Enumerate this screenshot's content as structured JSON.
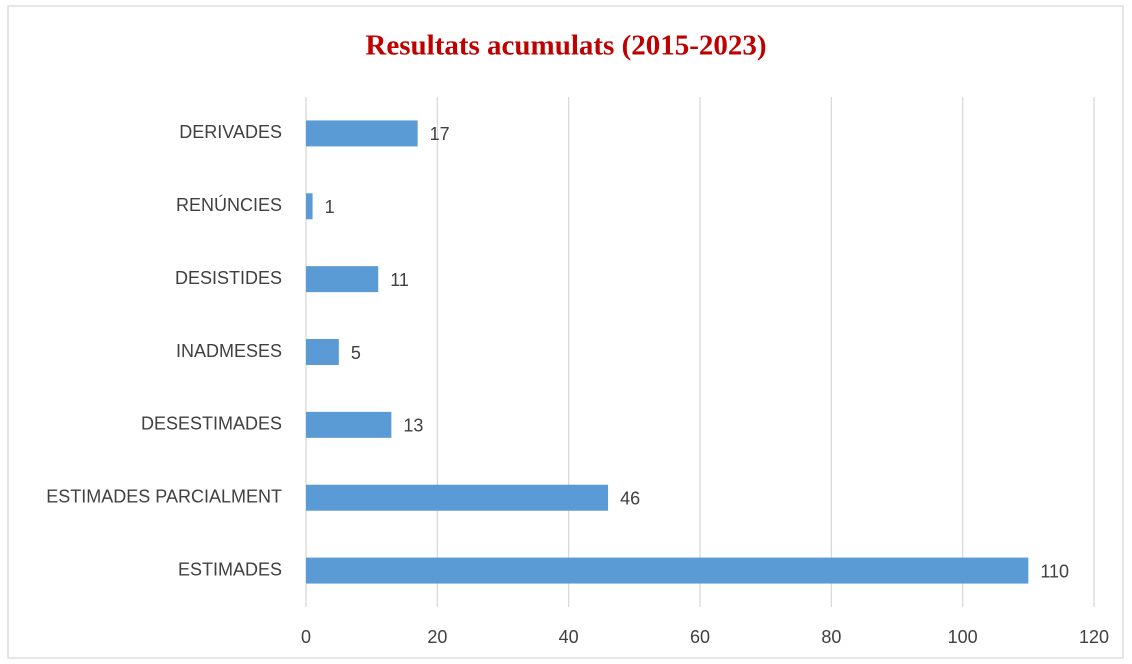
{
  "chart_data": {
    "type": "barh",
    "title": "Resultats acumulats (2015-2023)",
    "categories": [
      "DERIVADES",
      "RENÚNCIES",
      "DESISTIDES",
      "INADMESES",
      "DESESTIMADES",
      "ESTIMADES PARCIALMENT",
      "ESTIMADES"
    ],
    "values": [
      17,
      1,
      11,
      5,
      13,
      46,
      110
    ],
    "color": "#5b9bd5",
    "xlim": [
      0,
      120
    ],
    "xticks": [
      0,
      20,
      40,
      60,
      80,
      100,
      120
    ],
    "grid": true
  }
}
